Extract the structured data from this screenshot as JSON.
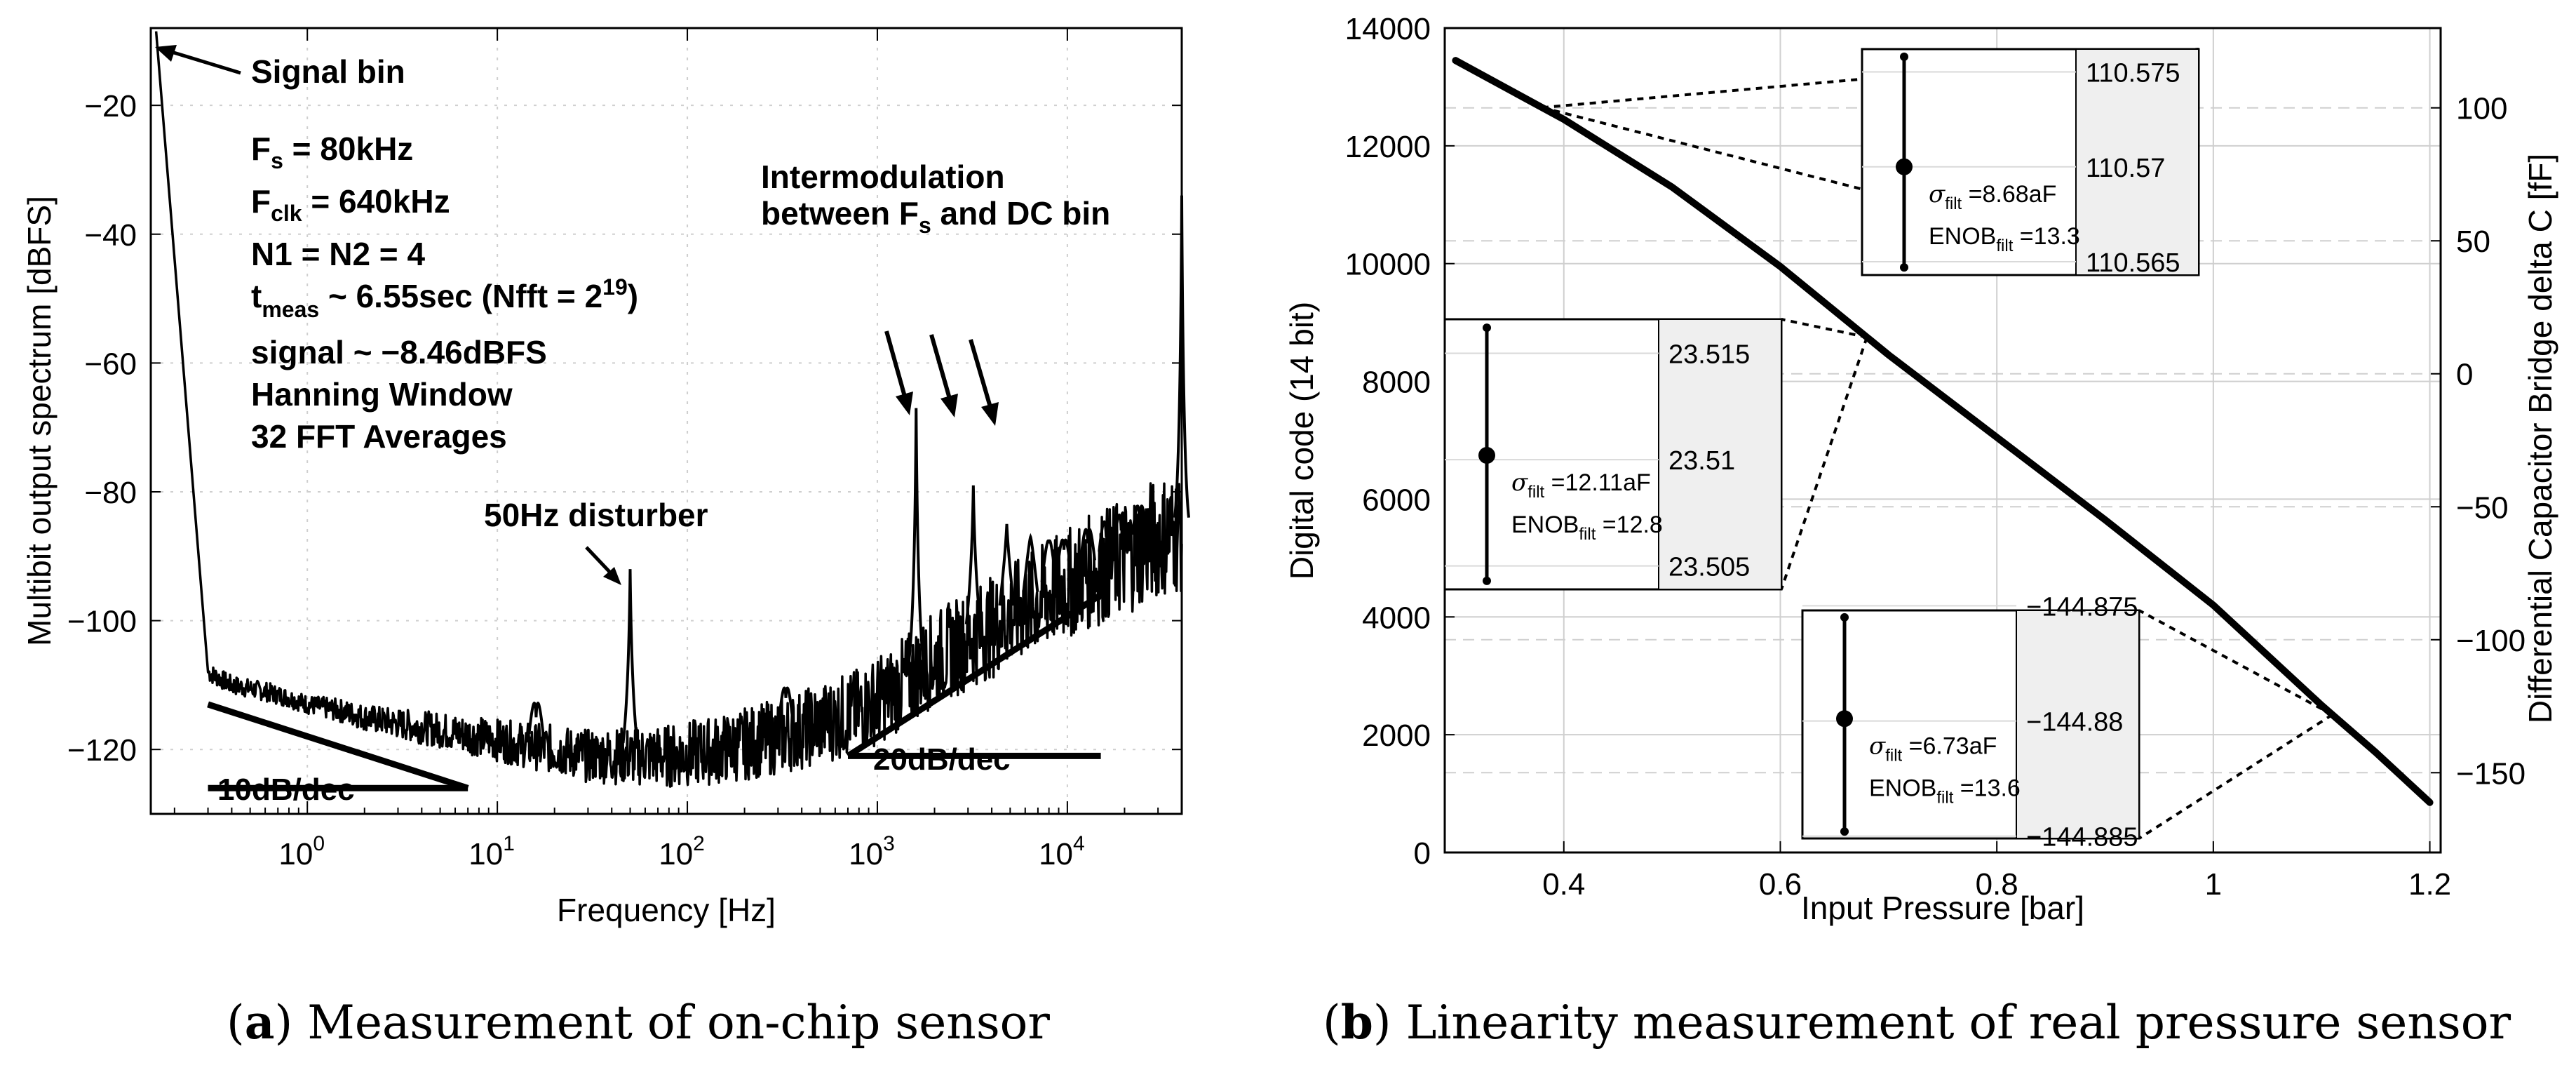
{
  "chart_data": [
    {
      "type": "line",
      "caption": {
        "label": "a",
        "text": " Measurement of on-chip sensor"
      },
      "xlabel": "Frequency [Hz]",
      "ylabel": "Multibit output spectrum [dBFS]",
      "xscale": "log",
      "xlim": [
        0.15,
        40000
      ],
      "ylim": [
        -130,
        -8
      ],
      "grid": true,
      "xticks": [
        {
          "value": 1,
          "base": "10",
          "exp": "0"
        },
        {
          "value": 10,
          "base": "10",
          "exp": "1"
        },
        {
          "value": 100,
          "base": "10",
          "exp": "2"
        },
        {
          "value": 1000,
          "base": "10",
          "exp": "3"
        },
        {
          "value": 10000,
          "base": "10",
          "exp": "4"
        }
      ],
      "yticks": [
        -120,
        -100,
        -80,
        -60,
        -40,
        -20
      ],
      "ytick_labels": [
        "−120",
        "−100",
        "−80",
        "−60",
        "−40",
        "−20"
      ],
      "series": [
        {
          "name": "spectrum",
          "x": [
            0.16,
            0.3,
            0.4,
            0.6,
            0.8,
            1.0,
            1.5,
            2,
            3,
            5,
            8,
            12,
            20,
            30,
            50,
            80,
            150,
            300,
            500,
            800,
            1200,
            1600,
            2000,
            3000,
            4000,
            6000,
            8000,
            12000,
            20000,
            30000,
            40000
          ],
          "values": [
            -8.5,
            -108,
            -110,
            -111,
            -112,
            -113,
            -114,
            -115,
            -116,
            -117,
            -118,
            -119,
            -120,
            -121,
            -121,
            -121,
            -120,
            -118,
            -116,
            -114,
            -111,
            -108,
            -106,
            -103,
            -101,
            -98,
            -96,
            -93,
            -90,
            -87,
            -86
          ]
        }
      ],
      "spurs": [
        {
          "name": "50Hz disturber",
          "x": 50,
          "peak": -92
        },
        {
          "name": "16Hz spur",
          "x": 16,
          "peak": -115
        },
        {
          "name": "330Hz spur",
          "x": 330,
          "peak": -112
        },
        {
          "name": "intermod 1",
          "x": 1600,
          "peak": -67
        },
        {
          "name": "intermod 2",
          "x": 3200,
          "peak": -79
        },
        {
          "name": "intermod 3",
          "x": 4800,
          "peak": -85
        },
        {
          "name": "intermod 4",
          "x": 6400,
          "peak": -87
        },
        {
          "name": "intermod 5",
          "x": 8000,
          "peak": -88
        },
        {
          "name": "intermod 6",
          "x": 9600,
          "peak": -89
        },
        {
          "name": "intermod 7",
          "x": 12800,
          "peak": -88
        },
        {
          "name": "intermod 8",
          "x": 16000,
          "peak": -87
        },
        {
          "name": "intermod 9",
          "x": 19200,
          "peak": -86
        },
        {
          "name": "intermod 10",
          "x": 24000,
          "peak": -85
        },
        {
          "name": "edge rise",
          "x": 40000,
          "peak": -34
        }
      ],
      "slope_lines": [
        {
          "name": "10dB/dec",
          "label": "10dB/dec",
          "x": [
            0.3,
            7
          ],
          "values": [
            -113,
            -126
          ]
        },
        {
          "name": "20dB/dec",
          "label": "20dB/dec",
          "x": [
            700,
            15000
          ],
          "values": [
            -121,
            -96
          ]
        }
      ],
      "annotations": {
        "signal_bin": "Signal bin",
        "fs": {
          "main": "F",
          "sub": "s",
          "rest": " = 80kHz"
        },
        "fclk": {
          "main": "F",
          "sub": "clk",
          "rest": " = 640kHz"
        },
        "n": "N1 = N2 = 4",
        "tmeas": {
          "main": "t",
          "sub": "meas",
          "mid": " ~ 6.55sec (Nfft = 2",
          "sup": "19",
          "end": ")"
        },
        "signal": "signal ~ −8.46dBFS",
        "window": "Hanning Window",
        "averages": "32 FFT Averages",
        "intermod_line1": "Intermodulation",
        "intermod_line2": {
          "pre": "between F",
          "sub": "s",
          "post": " and DC bin"
        },
        "disturber": "50Hz disturber"
      }
    },
    {
      "type": "line",
      "caption": {
        "label": "b",
        "text": " Linearity measurement of real pressure sensor"
      },
      "xlabel": "Input Pressure [bar]",
      "ylabel": "Digital code (14 bit)",
      "ylabel_right": "Differential Capacitor Bridge delta C [fF]",
      "xlim": [
        0.29,
        1.21
      ],
      "ylim": [
        0,
        14000
      ],
      "ylim_right": [
        -180,
        130
      ],
      "grid": true,
      "xticks": [
        0.4,
        0.6,
        0.8,
        1,
        1.2
      ],
      "xtick_labels": [
        "0.4",
        "0.6",
        "0.8",
        "1",
        "1.2"
      ],
      "yticks": [
        0,
        2000,
        4000,
        6000,
        8000,
        10000,
        12000,
        14000
      ],
      "yticks_right": [
        -150,
        -100,
        -50,
        0,
        50,
        100
      ],
      "yticks_right_labels": [
        "−150",
        "−100",
        "−50",
        "0",
        "50",
        "100"
      ],
      "series": [
        {
          "name": "digital code",
          "x": [
            0.3,
            0.4,
            0.5,
            0.6,
            0.7,
            0.8,
            0.9,
            1.0,
            1.1,
            1.15,
            1.2
          ],
          "values": [
            13450,
            12450,
            11300,
            9950,
            8450,
            7050,
            5650,
            4200,
            2500,
            1700,
            850
          ]
        }
      ],
      "insets": [
        {
          "name": "inset-top",
          "zoom_x": 0.38,
          "sigma": {
            "symbol": "σ",
            "sub": "filt",
            "value": " =8.68aF"
          },
          "enob": {
            "main": "ENOB",
            "sub": "filt",
            "value": " =13.3"
          },
          "ticks": [
            "110.575",
            "110.57",
            "110.565"
          ],
          "point": 110.57,
          "err_low": 110.5647,
          "err_high": 110.5758,
          "ylim": [
            110.5643,
            110.5762
          ]
        },
        {
          "name": "inset-mid",
          "zoom_x": 0.68,
          "sigma": {
            "symbol": "σ",
            "sub": "filt",
            "value": " =12.11aF"
          },
          "enob": {
            "main": "ENOB",
            "sub": "filt",
            "value": " =12.8"
          },
          "ticks": [
            "23.515",
            "23.51",
            "23.505"
          ],
          "point": 23.5102,
          "err_low": 23.5043,
          "err_high": 23.5162,
          "ylim": [
            23.5039,
            23.5166
          ]
        },
        {
          "name": "inset-bottom",
          "zoom_x": 1.11,
          "sigma": {
            "symbol": "σ",
            "sub": "filt",
            "value": " =6.73aF"
          },
          "enob": {
            "main": "ENOB",
            "sub": "filt",
            "value": " =13.6"
          },
          "ticks": [
            "−144.875",
            "−144.88",
            "−144.885"
          ],
          "point": -144.8799,
          "err_low": -144.8848,
          "err_high": -144.8755,
          "ylim": [
            -144.8851,
            -144.8752
          ]
        }
      ]
    }
  ]
}
